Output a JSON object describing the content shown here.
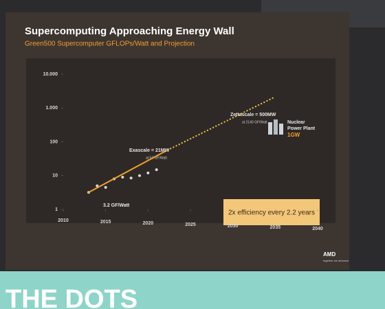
{
  "chart_data": {
    "type": "scatter",
    "title": "Supercomputing Approaching Energy Wall",
    "subtitle": "Green500 Supercomputer GFLOPs/Watt and Projection",
    "xlim": [
      2010,
      2040
    ],
    "xticks": [
      2010,
      2015,
      2020,
      2025,
      2030,
      2035,
      2040
    ],
    "ylim": [
      1,
      10000
    ],
    "yticks": [
      1,
      10,
      100,
      {
        "value": 1000,
        "label": "1.000"
      },
      {
        "value": 10000,
        "label": "10.000"
      }
    ],
    "log_y": true,
    "series": [
      {
        "mode": "markers",
        "color": "#d9d9d9",
        "x": [
          2013,
          2014,
          2015,
          2016,
          2017,
          2018,
          2019,
          2020,
          2021
        ],
        "values": [
          3.2,
          5,
          4.5,
          8,
          9,
          8.5,
          10,
          12,
          15
        ]
      },
      {
        "mode": "line",
        "color": "#f0a030",
        "x": [
          2013,
          2022
        ],
        "values": [
          3.2,
          52
        ]
      },
      {
        "mode": "dotted",
        "color": "#f2c14e",
        "x": [
          2022,
          2035
        ],
        "values": [
          52,
          2140
        ]
      }
    ],
    "annotations": [
      "Zettascale = 500MW",
      "at 2140 GF/Watt",
      "Exascale = 21MW",
      "at 52 GF/Watt",
      "3.2 GF/Watt",
      "Nuclear",
      "Power Plant",
      "1GW"
    ],
    "callout": "2x efficiency every 2.2 years"
  },
  "slide": {
    "logo": "AMD",
    "tagline": "together we advance",
    "banner": "THE DOTS"
  }
}
